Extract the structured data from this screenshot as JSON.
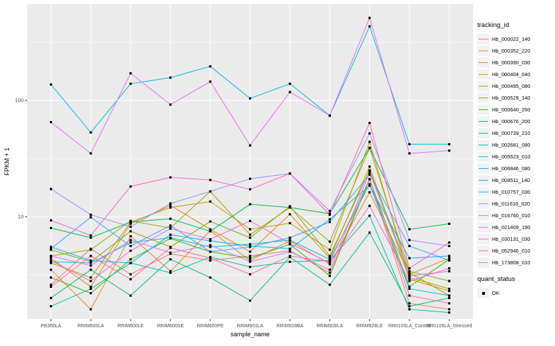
{
  "legend": {
    "color_title": "tracking_id",
    "shape_title": "quant_status",
    "shape_label": "OK"
  },
  "chart_data": {
    "type": "line",
    "title": "",
    "xlabel": "sample_name",
    "ylabel": "FPKM + 1",
    "y_scale": "log10",
    "ylim": [
      1.32,
      672
    ],
    "y_ticks": [
      10,
      100
    ],
    "y_minor": [
      3.16,
      31.6,
      316
    ],
    "grid": true,
    "legend_position": "right",
    "panel_bg": "#EBEBEB",
    "grid_color": "#FFFFFF",
    "marker": "black-square",
    "marker_color": "#000000",
    "categories": [
      "PB350LA",
      "RRIM600LA",
      "RRIM600LE",
      "RRIM600SE",
      "RRIM600PE",
      "RRIM901LA",
      "RRIM928BA",
      "RRIM928LA",
      "RRIM928LE",
      "RRII105LA_Control",
      "RRII105LA_Stressed"
    ],
    "series": [
      {
        "name": "Hb_000022_140",
        "color": "#F8766D",
        "values": [
          2.6,
          5.3,
          3.2,
          4.8,
          4.2,
          4.6,
          5.1,
          3.3,
          21,
          1.8,
          1.6
        ]
      },
      {
        "name": "Hb_000352_220",
        "color": "#EA8331",
        "values": [
          3.5,
          1.6,
          6.8,
          3.4,
          7.6,
          4.2,
          6.2,
          3.9,
          16.2,
          3.2,
          4.4
        ]
      },
      {
        "name": "Hb_000390_030",
        "color": "#D89000",
        "values": [
          4.4,
          2.5,
          8.7,
          12.5,
          7.8,
          5.0,
          10.5,
          4.4,
          27,
          2.9,
          2.3
        ]
      },
      {
        "name": "Hb_000404_040",
        "color": "#C09B00",
        "values": [
          4.0,
          3.0,
          9.0,
          12.0,
          13.5,
          7.8,
          8.8,
          5.2,
          44,
          3.0,
          2.4
        ]
      },
      {
        "name": "Hb_000495_080",
        "color": "#A3A500",
        "values": [
          4.6,
          5.2,
          9.2,
          8.0,
          16.5,
          7.0,
          12.0,
          6.1,
          39,
          3.4,
          2.8
        ]
      },
      {
        "name": "Hb_000529_140",
        "color": "#7CAE00",
        "values": [
          5.2,
          4.1,
          7.5,
          5.5,
          9.1,
          6.6,
          12.3,
          4.6,
          25,
          3.3,
          2.1
        ]
      },
      {
        "name": "Hb_000640_260",
        "color": "#39B600",
        "values": [
          3.0,
          2.2,
          4.3,
          6.5,
          5.0,
          4.4,
          5.8,
          3.1,
          21,
          2.5,
          4.3
        ]
      },
      {
        "name": "Hb_000676_200",
        "color": "#00BB4E",
        "values": [
          8.0,
          6.6,
          9.0,
          9.6,
          7.5,
          12.8,
          12.0,
          10.6,
          39,
          7.8,
          8.7
        ]
      },
      {
        "name": "Hb_000739_210",
        "color": "#00BF7D",
        "values": [
          2.0,
          3.5,
          2.1,
          4.3,
          3.0,
          1.9,
          4.5,
          2.6,
          7.3,
          1.7,
          2.0
        ]
      },
      {
        "name": "Hb_002681_080",
        "color": "#00C1A3",
        "values": [
          1.7,
          2.4,
          4.0,
          3.3,
          4.5,
          3.7,
          4.1,
          4.2,
          10.2,
          1.6,
          1.5
        ]
      },
      {
        "name": "Hb_005523_010",
        "color": "#00BFC4",
        "values": [
          4.1,
          4.0,
          6.0,
          6.6,
          5.5,
          5.8,
          6.3,
          4.3,
          19,
          2.4,
          2.1
        ]
      },
      {
        "name": "Hb_006846_080",
        "color": "#00BAE0",
        "values": [
          137,
          53,
          139,
          157,
          196,
          104,
          139,
          74,
          433,
          42,
          42
        ]
      },
      {
        "name": "Hb_008511_140",
        "color": "#00B0F6",
        "values": [
          5.5,
          4.2,
          4.0,
          7.0,
          6.2,
          5.6,
          5.3,
          9.5,
          18.5,
          4.4,
          4.6
        ]
      },
      {
        "name": "Hb_010757_030",
        "color": "#35A2FF",
        "values": [
          5.3,
          9.9,
          5.6,
          8.4,
          5.0,
          5.5,
          6.6,
          9.0,
          23,
          5.6,
          4.2
        ]
      },
      {
        "name": "Hb_011616_020",
        "color": "#9590FF",
        "values": [
          17.3,
          10.4,
          8.2,
          13.0,
          16.5,
          21.2,
          23.5,
          11.2,
          52,
          6.3,
          5.6
        ]
      },
      {
        "name": "Hb_016760_010",
        "color": "#C77CFF",
        "values": [
          4.6,
          3.8,
          6.3,
          4.9,
          5.7,
          4.1,
          5.0,
          3.5,
          24,
          3.1,
          3.4
        ]
      },
      {
        "name": "Hb_021409_190",
        "color": "#E76BF3",
        "values": [
          65,
          35,
          171,
          92,
          145,
          41,
          118,
          74,
          512,
          35,
          37
        ]
      },
      {
        "name": "Hb_030131_030",
        "color": "#FA62DB",
        "values": [
          4.2,
          2.8,
          5.1,
          7.9,
          6.4,
          9.2,
          5.9,
          4.0,
          12.4,
          2.8,
          3.6
        ]
      },
      {
        "name": "Hb_052946_010",
        "color": "#FF62BC",
        "values": [
          9.3,
          6.9,
          18.2,
          21.8,
          20.7,
          17.2,
          23.5,
          10.4,
          64,
          3.6,
          6.0
        ]
      },
      {
        "name": "Hb_173808_010",
        "color": "#FF6A98",
        "values": [
          2.5,
          4.6,
          2.9,
          5.4,
          4.4,
          3.2,
          4.6,
          4.1,
          21,
          2.1,
          1.8
        ]
      }
    ]
  }
}
